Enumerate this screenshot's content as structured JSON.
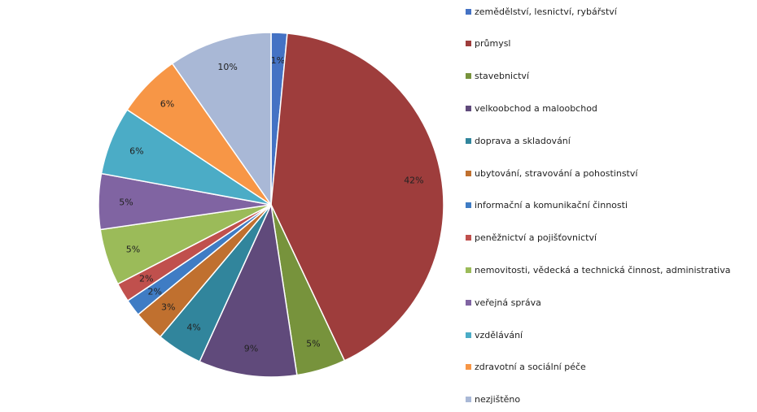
{
  "chart_data": {
    "type": "pie",
    "title": "",
    "categories": [
      "zemědělství, lesnictví, rybářství",
      "průmysl",
      "stavebnictví",
      "velkoobchod a maloobchod",
      "doprava a skladování",
      "ubytování, stravování a pohostinství",
      "informační a komunikační činnosti",
      "peněžnictví a pojišťovnictví",
      "nemovitosti, vědecká a technická činnost, administrativa",
      "veřejná správa",
      "vzdělávání",
      "zdravotní a sociální péče",
      "nezjištěno"
    ],
    "values": [
      1.5,
      41.5,
      4.6,
      9.2,
      4.3,
      2.9,
      1.6,
      1.8,
      5.3,
      5.2,
      6.4,
      6.0,
      9.7
    ],
    "labels": [
      "1%",
      "42%",
      "5%",
      "9%",
      "4%",
      "3%",
      "2%",
      "2%",
      "5%",
      "5%",
      "6%",
      "6%",
      "10%"
    ],
    "colors": [
      "#4472C4",
      "#9E3D3C",
      "#77933C",
      "#604A7B",
      "#31859C",
      "#C0702F",
      "#3F7CC4",
      "#C0504D",
      "#9BBB59",
      "#8064A2",
      "#4BACC6",
      "#F79646",
      "#A9B8D6"
    ],
    "legend_position": "right"
  }
}
